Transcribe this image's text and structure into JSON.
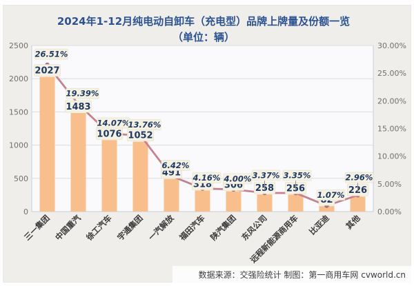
{
  "title": {
    "line1": "2024年1-12月纯电动自卸车（充电型）品牌上牌量及份额一览",
    "line2": "（单位：辆）"
  },
  "footer": {
    "source": "数据来源：交强险统计 制图：第一商用车网 cvworld.cn"
  },
  "chart_data": {
    "type": "bar",
    "title": "2024年1-12月纯电动自卸车（充电型）品牌上牌量及份额一览（单位：辆）",
    "categories": [
      "三一集团",
      "中国重汽",
      "徐工汽车",
      "宇通集团",
      "一汽解放",
      "福田汽车",
      "陕汽集团",
      "东风公司",
      "远程新能源商用车",
      "比亚迪",
      "其他"
    ],
    "series": [
      {
        "name": "上牌量",
        "type": "bar",
        "axis": "left",
        "values": [
          2027,
          1483,
          1076,
          1052,
          491,
          318,
          306,
          258,
          256,
          82,
          226
        ],
        "labels": [
          "2027",
          "1483",
          "1076",
          "1052",
          "491",
          "318",
          "306",
          "258",
          "256",
          "82",
          "226"
        ]
      },
      {
        "name": "份额",
        "type": "line",
        "axis": "right",
        "values": [
          26.51,
          19.39,
          14.07,
          13.76,
          6.42,
          4.16,
          4.0,
          3.37,
          3.35,
          1.07,
          2.96
        ],
        "labels": [
          "26.51%",
          "19.39%",
          "14.07%",
          "13.76%",
          "6.42%",
          "4.16%",
          "4.00%",
          "3.37%",
          "3.35%",
          "1.07%",
          "2.96%"
        ]
      }
    ],
    "left_axis": {
      "min": 0,
      "max": 2500,
      "ticks": [
        "0",
        "500",
        "1000",
        "1500",
        "2000",
        "2500"
      ]
    },
    "right_axis": {
      "min": 0,
      "max": 30,
      "ticks": [
        "0.00%",
        "5.00%",
        "10.00%",
        "15.00%",
        "20.00%",
        "25.00%",
        "30.00%"
      ]
    },
    "grid": true,
    "legend": "none",
    "leader_indices": [
      7,
      8,
      10
    ],
    "colors": {
      "bar": "#F8BF8D",
      "line": "#C5818F",
      "marker": "#AD7281",
      "label_text": "#1F3864",
      "label_bg": "#F5F2E3",
      "label_border": "#E4DFC9",
      "leader": "#8C8C8C",
      "title": "#2C5290",
      "axis_text": "#6F6F6F",
      "category_text": "#3A3A3A",
      "plot_bg": "#FAFAFC",
      "plot_border": "#C6CFDB",
      "gridline": "#DCDCDC",
      "page_bg": "#EFEEEB",
      "footer_bg": "#FCFCFC"
    }
  }
}
